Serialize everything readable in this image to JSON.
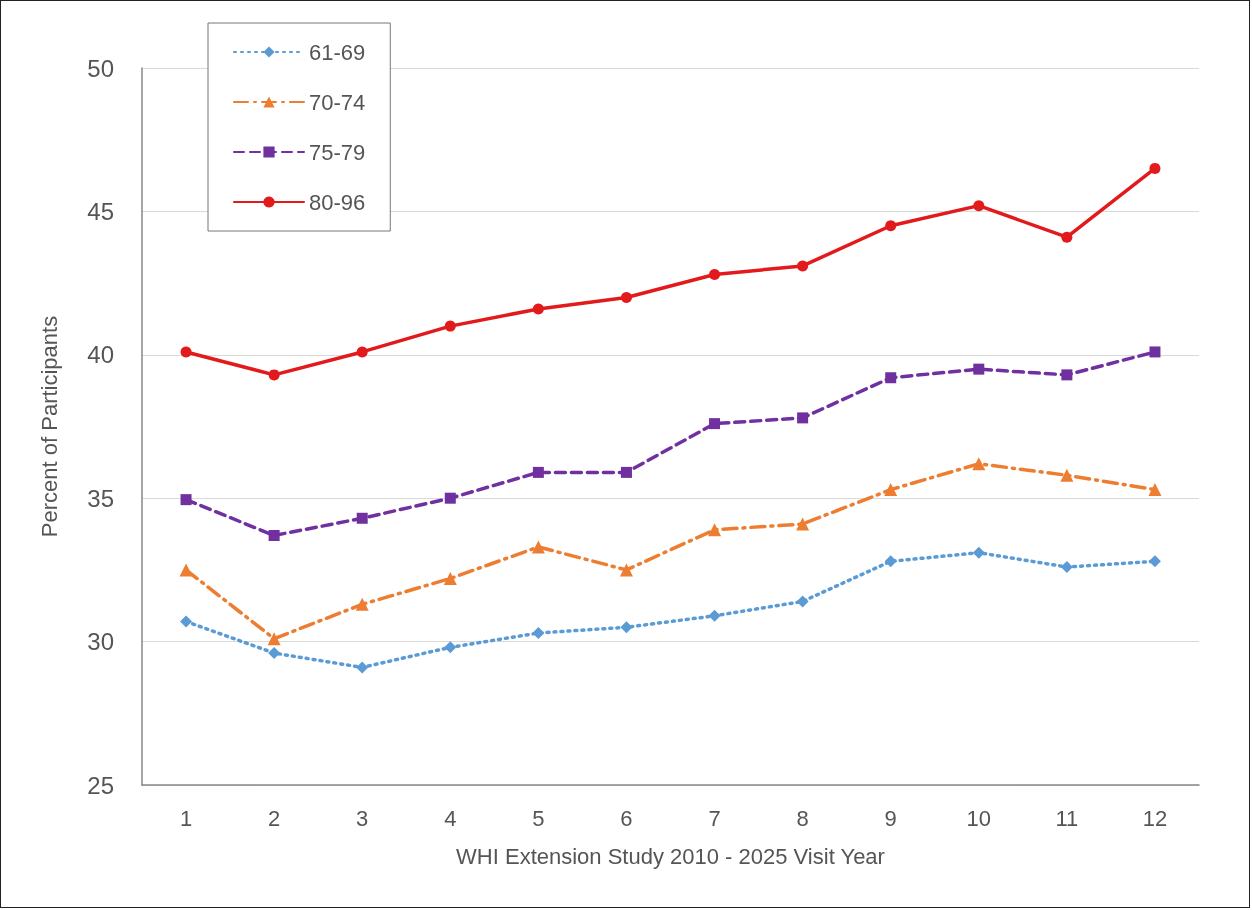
{
  "chart_data": {
    "type": "line",
    "xlabel": "WHI Extension Study 2010 - 2025 Visit Year",
    "ylabel": "Percent of Participants",
    "x": [
      1,
      2,
      3,
      4,
      5,
      6,
      7,
      8,
      9,
      10,
      11,
      12
    ],
    "xlim": [
      0.5,
      12.5
    ],
    "xticks": [
      1,
      2,
      3,
      4,
      5,
      6,
      7,
      8,
      9,
      10,
      11,
      12
    ],
    "series": [
      {
        "name": "61-69",
        "color": "#5b9bd5",
        "marker": "diamond",
        "line_style": "dotted",
        "values": [
          30.7,
          29.6,
          29.1,
          29.8,
          30.3,
          30.5,
          30.9,
          31.4,
          32.8,
          33.1,
          32.6,
          32.8
        ]
      },
      {
        "name": "70-74",
        "color": "#ed7d31",
        "marker": "triangle",
        "line_style": "dashdot",
        "values": [
          32.5,
          30.1,
          31.3,
          32.2,
          33.3,
          32.5,
          33.9,
          34.1,
          35.3,
          36.2,
          35.8,
          35.3
        ]
      },
      {
        "name": "75-79",
        "color": "#7030a0",
        "marker": "square",
        "line_style": "dashed",
        "values": [
          34.95,
          33.7,
          34.3,
          35.0,
          35.9,
          35.9,
          37.6,
          37.8,
          39.2,
          39.5,
          39.3,
          40.1
        ]
      },
      {
        "name": "80-96",
        "color": "#e31a1c",
        "marker": "circle",
        "line_style": "solid",
        "values": [
          40.1,
          39.3,
          40.1,
          41.0,
          41.6,
          42.0,
          42.8,
          43.1,
          44.5,
          45.2,
          44.1,
          46.5
        ]
      }
    ],
    "ylim": [
      25,
      50
    ],
    "yticks": [
      25,
      30,
      35,
      40,
      45,
      50
    ],
    "grid": "y",
    "legend": "top left"
  }
}
